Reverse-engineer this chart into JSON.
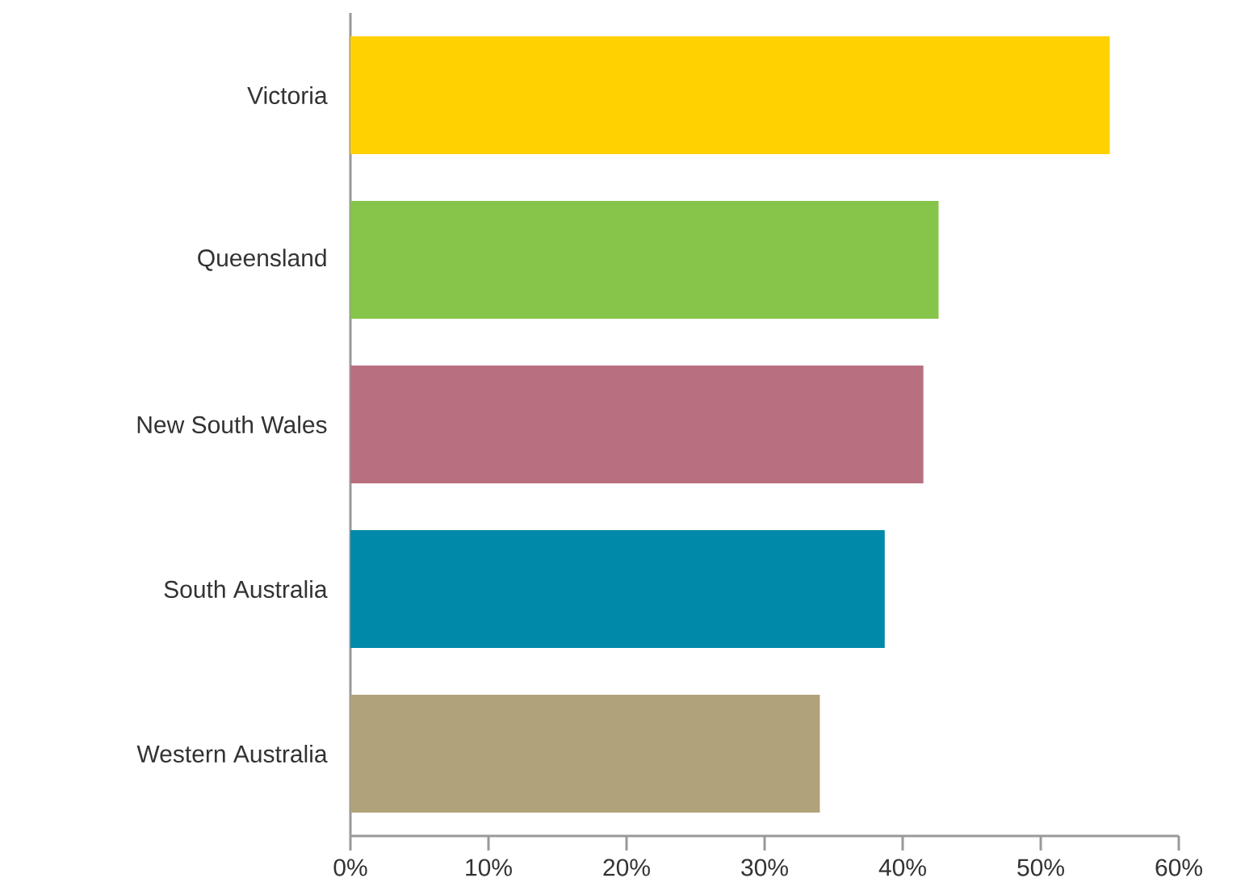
{
  "chart_data": {
    "type": "bar",
    "orientation": "horizontal",
    "categories": [
      "Victoria",
      "Queensland",
      "New South Wales",
      "South Australia",
      "Western Australia"
    ],
    "values": [
      55,
      42.6,
      41.5,
      38.7,
      34
    ],
    "colors": [
      "#ffd100",
      "#86c44a",
      "#b87080",
      "#0089a8",
      "#b0a27a"
    ],
    "xlim": [
      0,
      60
    ],
    "xticks": [
      {
        "value": 0,
        "label": "0%"
      },
      {
        "value": 10,
        "label": "10%"
      },
      {
        "value": 20,
        "label": "20%"
      },
      {
        "value": 30,
        "label": "30%"
      },
      {
        "value": 40,
        "label": "40%"
      },
      {
        "value": 50,
        "label": "50%"
      },
      {
        "value": 60,
        "label": "60%"
      }
    ]
  }
}
